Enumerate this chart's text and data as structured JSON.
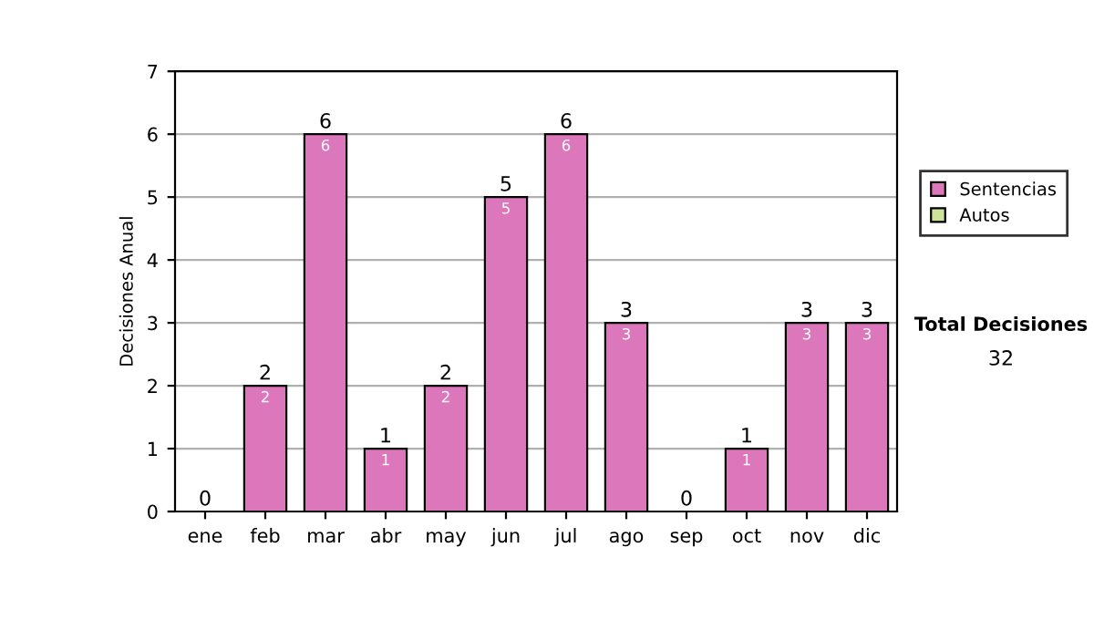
{
  "chart_data": {
    "type": "bar",
    "stacked": true,
    "ylabel": "Decisiones Anual",
    "categories": [
      "ene",
      "feb",
      "mar",
      "abr",
      "may",
      "jun",
      "jul",
      "ago",
      "sep",
      "oct",
      "nov",
      "dic"
    ],
    "series": [
      {
        "name": "Sentencias",
        "color": "#dd77bb",
        "values": [
          0,
          2,
          6,
          1,
          2,
          5,
          6,
          3,
          0,
          1,
          3,
          3
        ],
        "value_labels": [
          null,
          "2",
          "6",
          "1",
          "2",
          "5",
          "6",
          "3",
          null,
          "1",
          "3",
          "3"
        ]
      },
      {
        "name": "Autos",
        "color": "#cce399",
        "values": [
          0,
          0,
          0,
          0,
          0,
          0,
          0,
          0,
          0,
          0,
          0,
          0
        ],
        "value_labels": [
          null,
          null,
          null,
          null,
          null,
          null,
          null,
          null,
          null,
          null,
          null,
          null
        ]
      }
    ],
    "totals": [
      "0",
      "2",
      "6",
      "1",
      "2",
      "5",
      "6",
      "3",
      "0",
      "1",
      "3",
      "3"
    ],
    "ylim": [
      0,
      7
    ],
    "yticks": [
      0,
      1,
      2,
      3,
      4,
      5,
      6,
      7
    ],
    "grid": "y",
    "legend": "right",
    "annotations": [
      "Total Decisiones",
      "32"
    ]
  }
}
